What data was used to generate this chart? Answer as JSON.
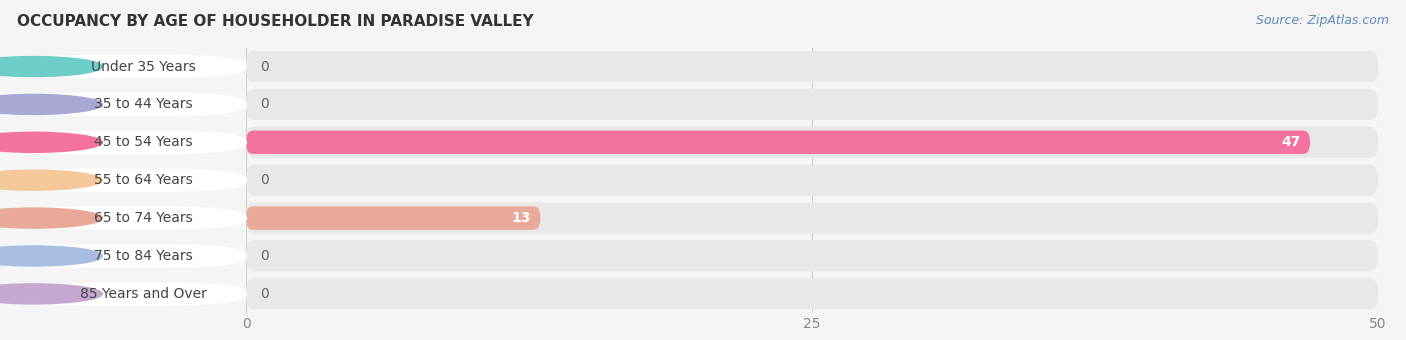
{
  "title": "OCCUPANCY BY AGE OF HOUSEHOLDER IN PARADISE VALLEY",
  "source": "Source: ZipAtlas.com",
  "categories": [
    "Under 35 Years",
    "35 to 44 Years",
    "45 to 54 Years",
    "55 to 64 Years",
    "65 to 74 Years",
    "75 to 84 Years",
    "85 Years and Over"
  ],
  "values": [
    0,
    0,
    47,
    0,
    13,
    0,
    0
  ],
  "bar_colors": [
    "#6dcdc8",
    "#a9a8d4",
    "#f472a0",
    "#f5c89a",
    "#e8a89a",
    "#a8bde0",
    "#c4a8d0"
  ],
  "label_circle_colors": [
    "#6dcdc8",
    "#a9a8d4",
    "#f472a0",
    "#f5c89a",
    "#e8a89a",
    "#a8bde0",
    "#c4a8d0"
  ],
  "xlim": [
    0,
    50
  ],
  "xticks": [
    0,
    25,
    50
  ],
  "background_color": "#f5f5f5",
  "row_bg_color": "#e8e8e8",
  "title_fontsize": 11,
  "source_fontsize": 9,
  "label_fontsize": 10,
  "value_fontsize": 10
}
